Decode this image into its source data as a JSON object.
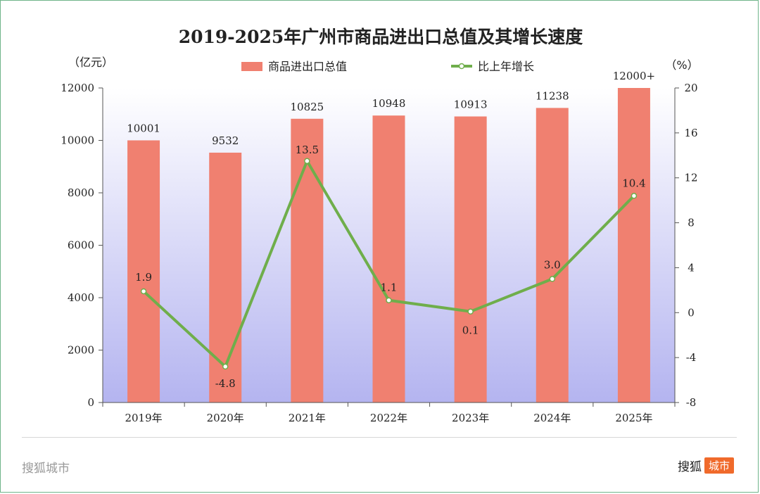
{
  "chart_data": {
    "type": "bar+line",
    "title": "2019-2025年广州市商品进出口总值及其增长速度",
    "left_unit": "（亿元）",
    "right_unit": "（%）",
    "categories": [
      "2019年",
      "2020年",
      "2021年",
      "2022年",
      "2023年",
      "2024年",
      "2025年"
    ],
    "series": [
      {
        "name": "商品进出口总值",
        "kind": "bar",
        "axis": "left",
        "values": [
          10001,
          9532,
          10825,
          10948,
          10913,
          11238,
          12000
        ],
        "labels": [
          "10001",
          "9532",
          "10825",
          "10948",
          "10913",
          "11238",
          "12000+"
        ]
      },
      {
        "name": "比上年增长",
        "kind": "line",
        "axis": "right",
        "values": [
          1.9,
          -4.8,
          13.5,
          1.1,
          0.1,
          3.0,
          10.4
        ],
        "labels": [
          "1.9",
          "-4.8",
          "13.5",
          "1.1",
          "0.1",
          "3.0",
          "10.4"
        ]
      }
    ],
    "left_axis": {
      "min": 0,
      "max": 12000,
      "ticks": [
        0,
        2000,
        4000,
        6000,
        8000,
        10000,
        12000
      ]
    },
    "right_axis": {
      "min": -8,
      "max": 20,
      "ticks": [
        -8,
        -4,
        0,
        4,
        8,
        12,
        16,
        20
      ]
    },
    "colors": {
      "bar": "#f08070",
      "line": "#6fae4b",
      "marker_fill": "#ffffff",
      "plot_bg_top": "#ffffff",
      "plot_bg_bottom": "#b4b4f0"
    }
  },
  "footer": {
    "left_brand": "搜狐城市",
    "right_brand_text": "搜狐",
    "right_badge": "城市"
  }
}
